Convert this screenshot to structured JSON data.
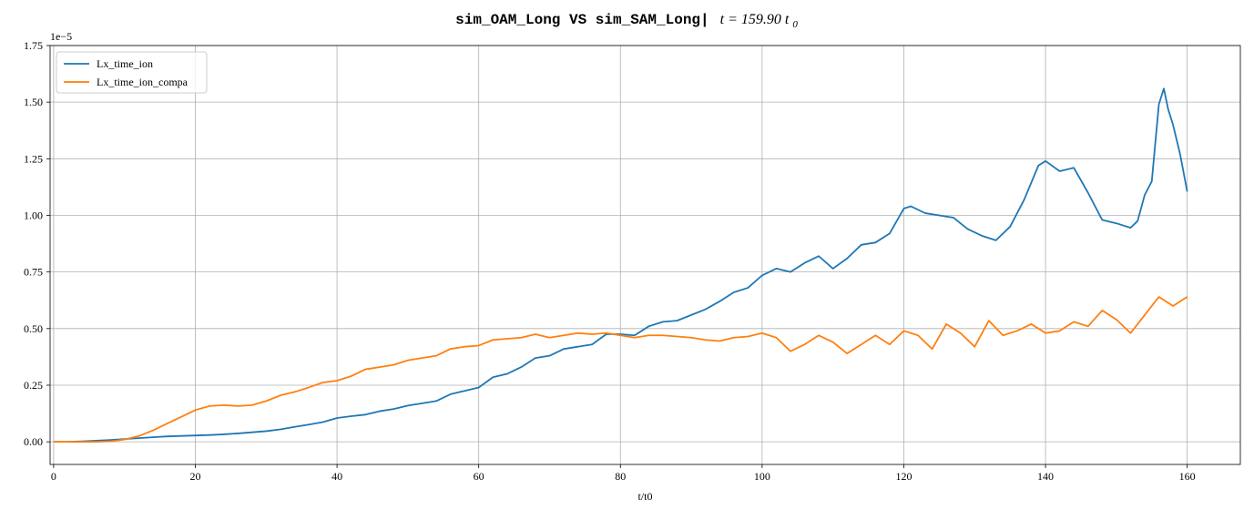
{
  "chart_data": {
    "type": "line",
    "title_code": "sim_OAM_Long VS sim_SAM_Long|",
    "title_math": "t = 159.90 t",
    "title_sub": "0",
    "xlabel": "t/t0",
    "ylabel": "",
    "offset_label": "1e−5",
    "xlim": [
      -0.5,
      167.5
    ],
    "ylim": [
      -0.1,
      1.75
    ],
    "xticks": [
      0,
      20,
      40,
      60,
      80,
      100,
      120,
      140,
      160
    ],
    "yticks": [
      0.0,
      0.25,
      0.5,
      0.75,
      1.0,
      1.25,
      1.5,
      1.75
    ],
    "ytick_labels": [
      "0.00",
      "0.25",
      "0.50",
      "0.75",
      "1.00",
      "1.25",
      "1.50",
      "1.75"
    ],
    "grid": true,
    "legend_position": "upper-left",
    "series": [
      {
        "name": "Lx_time_ion",
        "color": "#1f77b4",
        "x": [
          0,
          2,
          4,
          6,
          8,
          10,
          12,
          14,
          16,
          18,
          20,
          22,
          24,
          26,
          28,
          30,
          32,
          34,
          36,
          38,
          40,
          42,
          44,
          46,
          48,
          50,
          52,
          54,
          56,
          58,
          60,
          62,
          64,
          66,
          68,
          70,
          72,
          74,
          76,
          78,
          80,
          82,
          84,
          86,
          88,
          90,
          92,
          94,
          96,
          98,
          100,
          102,
          104,
          106,
          108,
          110,
          112,
          114,
          116,
          118,
          120,
          121,
          123,
          125,
          127,
          129,
          131,
          133,
          135,
          137,
          139,
          140,
          142,
          144,
          146,
          148,
          150,
          152,
          153,
          154,
          155,
          156,
          156.7,
          157.3,
          158,
          159,
          160
        ],
        "y": [
          0.0,
          0.0,
          0.002,
          0.005,
          0.008,
          0.012,
          0.016,
          0.02,
          0.024,
          0.026,
          0.028,
          0.03,
          0.033,
          0.037,
          0.042,
          0.047,
          0.055,
          0.066,
          0.076,
          0.087,
          0.105,
          0.113,
          0.12,
          0.135,
          0.145,
          0.16,
          0.17,
          0.18,
          0.21,
          0.225,
          0.24,
          0.285,
          0.3,
          0.33,
          0.37,
          0.38,
          0.41,
          0.42,
          0.43,
          0.475,
          0.475,
          0.47,
          0.51,
          0.53,
          0.535,
          0.56,
          0.585,
          0.62,
          0.66,
          0.68,
          0.735,
          0.765,
          0.75,
          0.79,
          0.82,
          0.765,
          0.81,
          0.87,
          0.88,
          0.92,
          1.03,
          1.04,
          1.01,
          1.0,
          0.99,
          0.94,
          0.91,
          0.89,
          0.95,
          1.07,
          1.22,
          1.24,
          1.195,
          1.21,
          1.1,
          0.98,
          0.965,
          0.945,
          0.975,
          1.09,
          1.15,
          1.49,
          1.56,
          1.47,
          1.4,
          1.27,
          1.105
        ]
      },
      {
        "name": "Lx_time_ion_compa",
        "color": "#ff7f0e",
        "x": [
          0,
          2,
          4,
          6,
          8,
          10,
          12,
          14,
          16,
          18,
          20,
          22,
          24,
          26,
          28,
          30,
          32,
          34,
          36,
          38,
          40,
          42,
          44,
          46,
          48,
          50,
          52,
          54,
          56,
          58,
          60,
          62,
          64,
          66,
          68,
          70,
          72,
          74,
          76,
          78,
          80,
          82,
          84,
          86,
          88,
          90,
          92,
          94,
          96,
          98,
          100,
          102,
          104,
          106,
          108,
          110,
          112,
          114,
          116,
          118,
          120,
          122,
          124,
          126,
          128,
          130,
          132,
          134,
          136,
          138,
          140,
          142,
          144,
          146,
          148,
          150,
          152,
          154,
          156,
          158,
          160
        ],
        "y": [
          0.0,
          0.0,
          0.0,
          0.0,
          0.002,
          0.01,
          0.025,
          0.05,
          0.08,
          0.11,
          0.14,
          0.158,
          0.162,
          0.158,
          0.162,
          0.18,
          0.205,
          0.22,
          0.24,
          0.262,
          0.27,
          0.29,
          0.32,
          0.33,
          0.34,
          0.36,
          0.37,
          0.38,
          0.41,
          0.42,
          0.425,
          0.45,
          0.455,
          0.46,
          0.475,
          0.46,
          0.47,
          0.48,
          0.475,
          0.48,
          0.47,
          0.46,
          0.47,
          0.47,
          0.465,
          0.46,
          0.45,
          0.445,
          0.46,
          0.465,
          0.48,
          0.46,
          0.4,
          0.43,
          0.47,
          0.44,
          0.39,
          0.43,
          0.47,
          0.43,
          0.49,
          0.47,
          0.41,
          0.52,
          0.48,
          0.42,
          0.535,
          0.47,
          0.49,
          0.52,
          0.48,
          0.49,
          0.53,
          0.51,
          0.58,
          0.54,
          0.48,
          0.56,
          0.64,
          0.6,
          0.64
        ]
      }
    ]
  }
}
